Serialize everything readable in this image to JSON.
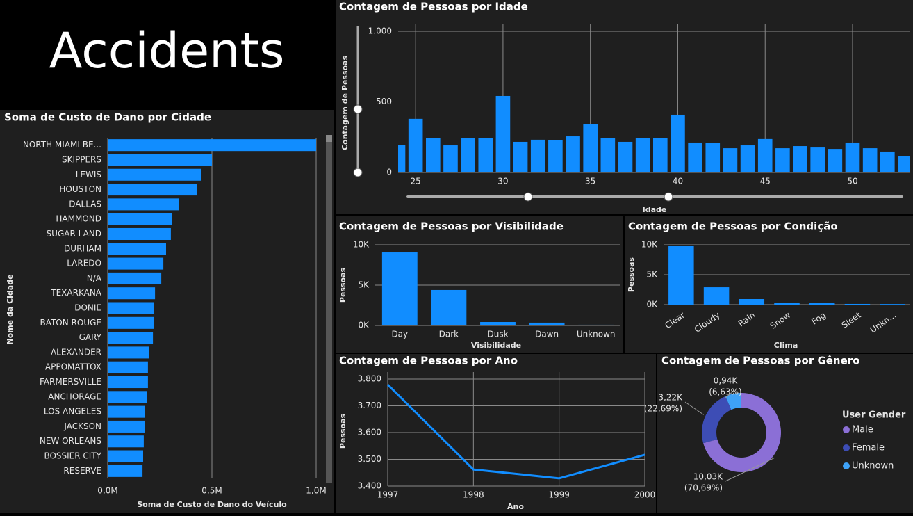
{
  "header": {
    "title": "Accidents"
  },
  "chart_data": [
    {
      "type": "bar",
      "orientation": "horizontal",
      "title": "Soma de Custo de Dano por Cidade",
      "categories": [
        "NORTH MIAMI BE...",
        "SKIPPERS",
        "LEWIS",
        "HOUSTON",
        "DALLAS",
        "HAMMOND",
        "SUGAR LAND",
        "DURHAM",
        "LAREDO",
        "N/A",
        "TEXARKANA",
        "DONIE",
        "BATON ROUGE",
        "GARY",
        "ALEXANDER",
        "APPOMATTOX",
        "FARMERSVILLE",
        "ANCHORAGE",
        "LOS ANGELES",
        "JACKSON",
        "NEW ORLEANS",
        "BOSSIER CITY",
        "RESERVE"
      ],
      "values": [
        1000000,
        500000,
        450000,
        430000,
        340000,
        307000,
        303000,
        280000,
        267000,
        257000,
        227000,
        223000,
        220000,
        217000,
        200000,
        193000,
        193000,
        190000,
        180000,
        177000,
        173000,
        170000,
        167000
      ],
      "color": "#118dff",
      "xlim": [
        0,
        1000000
      ],
      "xticks": [
        {
          "value": 0,
          "label": "0,0M"
        },
        {
          "value": 500000,
          "label": "0,5M"
        },
        {
          "value": 1000000,
          "label": "1,0M"
        }
      ],
      "xlabel": "Soma de Custo de Dano do Veículo",
      "ylabel": "Nome da Cidade",
      "grid": true
    },
    {
      "type": "bar",
      "title": "Contagem de Pessoas por Idade",
      "x": [
        24,
        25,
        26,
        27,
        28,
        29,
        30,
        31,
        32,
        33,
        34,
        35,
        36,
        37,
        38,
        39,
        40,
        41,
        42,
        43,
        44,
        45,
        46,
        47,
        48,
        49,
        50,
        51,
        52,
        53
      ],
      "values": [
        197,
        380,
        242,
        192,
        246,
        246,
        542,
        217,
        232,
        227,
        256,
        340,
        242,
        217,
        242,
        242,
        409,
        212,
        207,
        172,
        192,
        237,
        172,
        187,
        177,
        167,
        212,
        172,
        148,
        118
      ],
      "color": "#118dff",
      "xlim": [
        24,
        53.3
      ],
      "xticks": [
        25,
        30,
        35,
        40,
        45,
        50
      ],
      "ylim": [
        0,
        1000
      ],
      "yticks": [
        0,
        500,
        {
          "value": 1000,
          "label": "1.000"
        }
      ],
      "xlabel": "Idade",
      "ylabel": "Contagem de Pessoas",
      "grid": true
    },
    {
      "type": "bar",
      "title": "Contagem de Pessoas por Visibilidade",
      "categories": [
        "Day",
        "Dark",
        "Dusk",
        "Dawn",
        "Unknown"
      ],
      "values": [
        9050,
        4400,
        430,
        350,
        90
      ],
      "color": "#118dff",
      "ylim": [
        0,
        10000
      ],
      "yticks": [
        {
          "value": 0,
          "label": "0K"
        },
        {
          "value": 5000,
          "label": "5K"
        },
        {
          "value": 10000,
          "label": "10K"
        }
      ],
      "xlabel": "Visibilidade",
      "ylabel": "Pessoas",
      "grid": true
    },
    {
      "type": "bar",
      "title": "Contagem de Pessoas por Condição",
      "categories": [
        "Clear",
        "Cloudy",
        "Rain",
        "Snow",
        "Fog",
        "Sleet",
        "Unkn..."
      ],
      "values": [
        9770,
        2900,
        930,
        350,
        230,
        120,
        100
      ],
      "color": "#118dff",
      "ylim": [
        0,
        10000
      ],
      "yticks": [
        {
          "value": 0,
          "label": "0K"
        },
        {
          "value": 5000,
          "label": "5K"
        },
        {
          "value": 10000,
          "label": "10K"
        }
      ],
      "xlabel": "Clima",
      "ylabel": "Pessoas",
      "grid": true
    },
    {
      "type": "line",
      "title": "Contagem de Pessoas por Ano",
      "x": [
        1997,
        1998,
        1999,
        2000
      ],
      "values": [
        3779,
        3462,
        3429,
        3517
      ],
      "color": "#118dff",
      "xlim": [
        1997,
        2000
      ],
      "xticks": [
        1997,
        1998,
        1999,
        2000
      ],
      "ylim": [
        3400,
        3800
      ],
      "yticks": [
        {
          "value": 3400,
          "label": "3.400"
        },
        {
          "value": 3500,
          "label": "3.500"
        },
        {
          "value": 3600,
          "label": "3.600"
        },
        {
          "value": 3700,
          "label": "3.700"
        },
        {
          "value": 3800,
          "label": "3.800"
        }
      ],
      "xlabel": "Ano",
      "ylabel": "Pessoas",
      "grid": true
    },
    {
      "type": "pie",
      "title": "Contagem de Pessoas por Gênero",
      "legend_title": "User Gender",
      "categories": [
        "Male",
        "Female",
        "Unknown"
      ],
      "values": [
        10030,
        3220,
        940
      ],
      "value_labels": [
        "10,03K",
        "3,22K",
        "0,94K"
      ],
      "percentages": [
        70.69,
        22.69,
        6.63
      ],
      "percent_labels": [
        "(70,69%)",
        "(22,69%)",
        "(6,63%)"
      ],
      "colors": [
        "#8b6fd6",
        "#3d4db5",
        "#3ea2f7"
      ],
      "legend": "right"
    }
  ]
}
